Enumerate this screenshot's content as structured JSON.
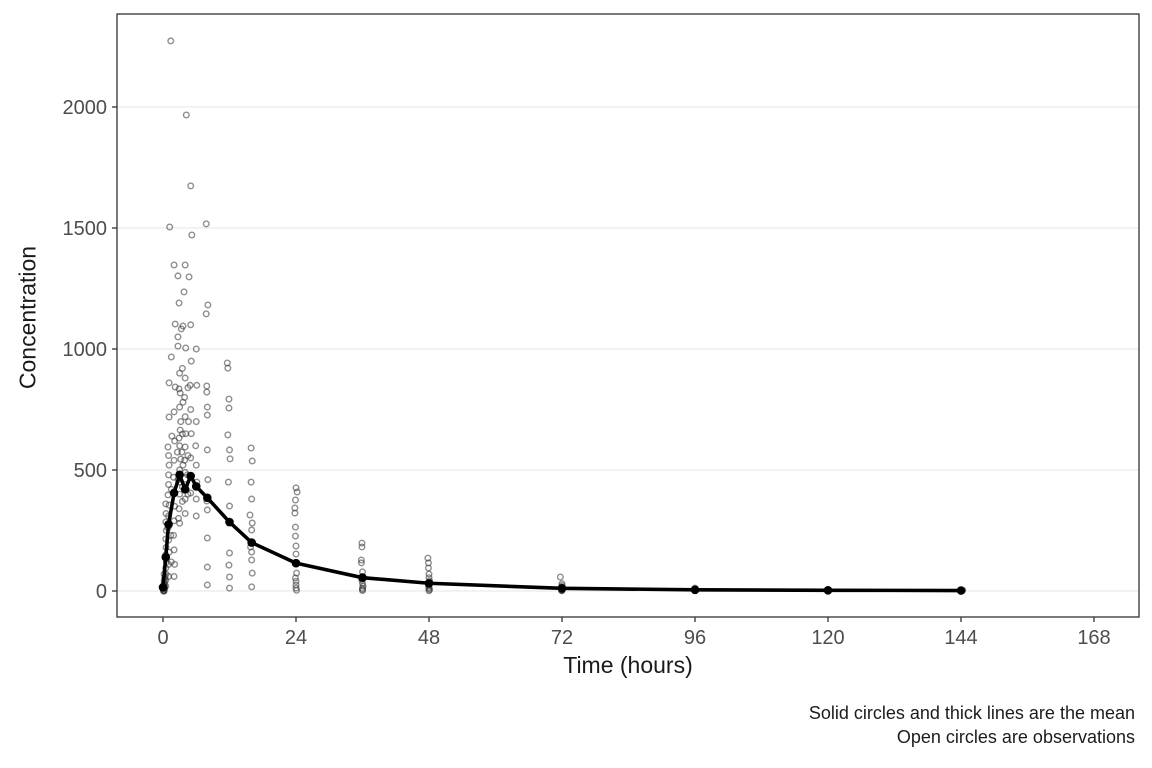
{
  "figure": {
    "background": "#ffffff"
  },
  "chart_data": {
    "type": "scatter",
    "title": "",
    "xlabel": "Time (hours)",
    "ylabel": "Concentration",
    "caption": [
      "Solid circles and thick lines are the mean",
      "Open circles are observations"
    ],
    "x_ticks": [
      0,
      24,
      48,
      72,
      96,
      120,
      144,
      168
    ],
    "y_ticks": [
      0,
      500,
      1000,
      1500,
      2000
    ],
    "xlim": [
      -8.4,
      176.4
    ],
    "ylim": [
      -110,
      2385
    ],
    "grid": "horizontal-major-only",
    "legend_position": "none",
    "style": {
      "point_color": "#333333",
      "point_opacity": 0.55,
      "mean_color": "#000000",
      "grid_color": "#ebebeb",
      "border_color": "#333333",
      "tick_label_color": "#4d4d4d",
      "text_color": "#1a1a1a"
    },
    "series": [
      {
        "name": "Mean",
        "marker": "solid-circle",
        "line": "thick",
        "points": [
          [
            0,
            15
          ],
          [
            0.5,
            140
          ],
          [
            1,
            275
          ],
          [
            2,
            405
          ],
          [
            3,
            480
          ],
          [
            4,
            420
          ],
          [
            5,
            475
          ],
          [
            6,
            432
          ],
          [
            8,
            385
          ],
          [
            12,
            285
          ],
          [
            16,
            200
          ],
          [
            24,
            115
          ],
          [
            36,
            55
          ],
          [
            48,
            32
          ],
          [
            72,
            11
          ],
          [
            96,
            5
          ],
          [
            120,
            3
          ],
          [
            144,
            2
          ]
        ]
      },
      {
        "name": "Observations",
        "marker": "open-circle",
        "line": "none",
        "points": [
          [
            0.1,
            0
          ],
          [
            0.15,
            0
          ],
          [
            0.2,
            0
          ],
          [
            0.1,
            3
          ],
          [
            0.2,
            6
          ],
          [
            0.3,
            10
          ],
          [
            0.15,
            14
          ],
          [
            0.25,
            18
          ],
          [
            0.1,
            24
          ],
          [
            0.3,
            30
          ],
          [
            0.2,
            38
          ],
          [
            0.25,
            48
          ],
          [
            0.35,
            58
          ],
          [
            0.2,
            70
          ],
          [
            0.5,
            20
          ],
          [
            0.5,
            45
          ],
          [
            0.55,
            70
          ],
          [
            0.5,
            95
          ],
          [
            0.6,
            120
          ],
          [
            0.5,
            150
          ],
          [
            0.55,
            180
          ],
          [
            0.5,
            215
          ],
          [
            0.6,
            250
          ],
          [
            0.5,
            285
          ],
          [
            0.55,
            320
          ],
          [
            0.5,
            360
          ],
          [
            1,
            60
          ],
          [
            1,
            110
          ],
          [
            1.1,
            160
          ],
          [
            1,
            210
          ],
          [
            0.9,
            260
          ],
          [
            1,
            310
          ],
          [
            1.1,
            355
          ],
          [
            0.9,
            397
          ],
          [
            1,
            440
          ],
          [
            1,
            480
          ],
          [
            1.1,
            520
          ],
          [
            1,
            560
          ],
          [
            0.9,
            595
          ],
          [
            1.1,
            719
          ],
          [
            1.1,
            860
          ],
          [
            1.2,
            1504
          ],
          [
            1.4,
            2273
          ],
          [
            1.5,
            967
          ],
          [
            1.6,
            640
          ],
          [
            1.5,
            420
          ],
          [
            1.4,
            230
          ],
          [
            1.5,
            120
          ],
          [
            2,
            1347
          ],
          [
            2.2,
            1103
          ],
          [
            2.2,
            843
          ],
          [
            2,
            740
          ],
          [
            2.1,
            620
          ],
          [
            2,
            540
          ],
          [
            1.9,
            470
          ],
          [
            2,
            410
          ],
          [
            2.1,
            350
          ],
          [
            2,
            290
          ],
          [
            1.9,
            230
          ],
          [
            2,
            170
          ],
          [
            2.1,
            110
          ],
          [
            2,
            60
          ],
          [
            2.7,
            1302
          ],
          [
            2.7,
            1050
          ],
          [
            2.7,
            1012
          ],
          [
            2.9,
            835
          ],
          [
            2.9,
            632
          ],
          [
            2.6,
            574
          ],
          [
            2.7,
            460
          ],
          [
            2.8,
            300
          ],
          [
            2.9,
            1190
          ],
          [
            3.3,
            1083
          ],
          [
            3,
            900
          ],
          [
            3.1,
            818
          ],
          [
            3,
            760
          ],
          [
            3.2,
            700
          ],
          [
            3.1,
            665
          ],
          [
            3,
            600
          ],
          [
            3.2,
            545
          ],
          [
            3,
            500
          ],
          [
            3.1,
            450
          ],
          [
            3,
            400
          ],
          [
            2.9,
            340
          ],
          [
            3,
            280
          ],
          [
            3.6,
            1095
          ],
          [
            3.5,
            920
          ],
          [
            3.6,
            780
          ],
          [
            3.5,
            649
          ],
          [
            3.4,
            574
          ],
          [
            3.6,
            520
          ],
          [
            3.5,
            430
          ],
          [
            3.5,
            370
          ],
          [
            4.2,
            1967
          ],
          [
            4,
            1347
          ],
          [
            3.8,
            1236
          ],
          [
            4.1,
            1004
          ],
          [
            4,
            880
          ],
          [
            3.9,
            800
          ],
          [
            4,
            720
          ],
          [
            4.1,
            650
          ],
          [
            4,
            595
          ],
          [
            3.9,
            540
          ],
          [
            4,
            490
          ],
          [
            4.1,
            440
          ],
          [
            4,
            380
          ],
          [
            4,
            320
          ],
          [
            4.7,
            1298
          ],
          [
            4.5,
            840
          ],
          [
            4.6,
            700
          ],
          [
            4.5,
            560
          ],
          [
            4.4,
            480
          ],
          [
            4.5,
            400
          ],
          [
            5,
            1674
          ],
          [
            5.2,
            1471
          ],
          [
            5,
            1100
          ],
          [
            5.1,
            950
          ],
          [
            4.9,
            850
          ],
          [
            5,
            750
          ],
          [
            5.1,
            650
          ],
          [
            5,
            550
          ],
          [
            4.9,
            470
          ],
          [
            5,
            405
          ],
          [
            6,
            1000
          ],
          [
            6.1,
            850
          ],
          [
            6,
            700
          ],
          [
            5.9,
            600
          ],
          [
            6,
            520
          ],
          [
            6.1,
            450
          ],
          [
            6,
            380
          ],
          [
            6,
            310
          ],
          [
            7.8,
            1517
          ],
          [
            8.1,
            1182
          ],
          [
            7.8,
            1145
          ],
          [
            7.9,
            847
          ],
          [
            7.9,
            822
          ],
          [
            8,
            760
          ],
          [
            8,
            727
          ],
          [
            8,
            583
          ],
          [
            8.1,
            460
          ],
          [
            7.9,
            372
          ],
          [
            8,
            335
          ],
          [
            8,
            219
          ],
          [
            8,
            99
          ],
          [
            8,
            25
          ],
          [
            11.6,
            942
          ],
          [
            11.7,
            921
          ],
          [
            11.9,
            793
          ],
          [
            11.9,
            756
          ],
          [
            11.7,
            645
          ],
          [
            12,
            583
          ],
          [
            12.1,
            546
          ],
          [
            11.8,
            450
          ],
          [
            12,
            351
          ],
          [
            12.1,
            281
          ],
          [
            12,
            157
          ],
          [
            11.9,
            107
          ],
          [
            12,
            58
          ],
          [
            12,
            12
          ],
          [
            15.9,
            591
          ],
          [
            16.1,
            537
          ],
          [
            15.9,
            450
          ],
          [
            16,
            380
          ],
          [
            15.7,
            314
          ],
          [
            16.1,
            281
          ],
          [
            16,
            252
          ],
          [
            15.8,
            182
          ],
          [
            16,
            161
          ],
          [
            16,
            128
          ],
          [
            16.1,
            74
          ],
          [
            16,
            17
          ],
          [
            24,
            426
          ],
          [
            24.2,
            409
          ],
          [
            23.9,
            376
          ],
          [
            23.8,
            343
          ],
          [
            23.8,
            322
          ],
          [
            23.9,
            264
          ],
          [
            23.9,
            227
          ],
          [
            24,
            186
          ],
          [
            24,
            153
          ],
          [
            24,
            115
          ],
          [
            24.1,
            74
          ],
          [
            23.9,
            54
          ],
          [
            24,
            40
          ],
          [
            24,
            25
          ],
          [
            24,
            12
          ],
          [
            24.1,
            3
          ],
          [
            35.9,
            198
          ],
          [
            35.9,
            182
          ],
          [
            35.8,
            128
          ],
          [
            35.8,
            116
          ],
          [
            36,
            79
          ],
          [
            36,
            60
          ],
          [
            35.9,
            45
          ],
          [
            36,
            32
          ],
          [
            36.1,
            20
          ],
          [
            36,
            12
          ],
          [
            36,
            6
          ],
          [
            36,
            2
          ],
          [
            47.8,
            136
          ],
          [
            47.9,
            116
          ],
          [
            47.9,
            95
          ],
          [
            48,
            70
          ],
          [
            48,
            55
          ],
          [
            48.1,
            42
          ],
          [
            48,
            30
          ],
          [
            47.9,
            22
          ],
          [
            48,
            15
          ],
          [
            48,
            10
          ],
          [
            48.1,
            5
          ],
          [
            48,
            1
          ],
          [
            71.7,
            58
          ],
          [
            72,
            30
          ],
          [
            72,
            22
          ],
          [
            71.9,
            16
          ],
          [
            72,
            12
          ],
          [
            72.1,
            9
          ],
          [
            72,
            6
          ],
          [
            72,
            4
          ],
          [
            71.9,
            2
          ],
          [
            72,
            1
          ],
          [
            96,
            12
          ],
          [
            96,
            8
          ],
          [
            95.9,
            5
          ],
          [
            96,
            3
          ],
          [
            96.1,
            2
          ],
          [
            96,
            1
          ],
          [
            120,
            6
          ],
          [
            120,
            4
          ],
          [
            119.9,
            3
          ],
          [
            120,
            2
          ],
          [
            120.1,
            1
          ],
          [
            120,
            0
          ],
          [
            144.3,
            3
          ],
          [
            144,
            2
          ],
          [
            144.2,
            1
          ],
          [
            144,
            0
          ]
        ]
      }
    ]
  }
}
